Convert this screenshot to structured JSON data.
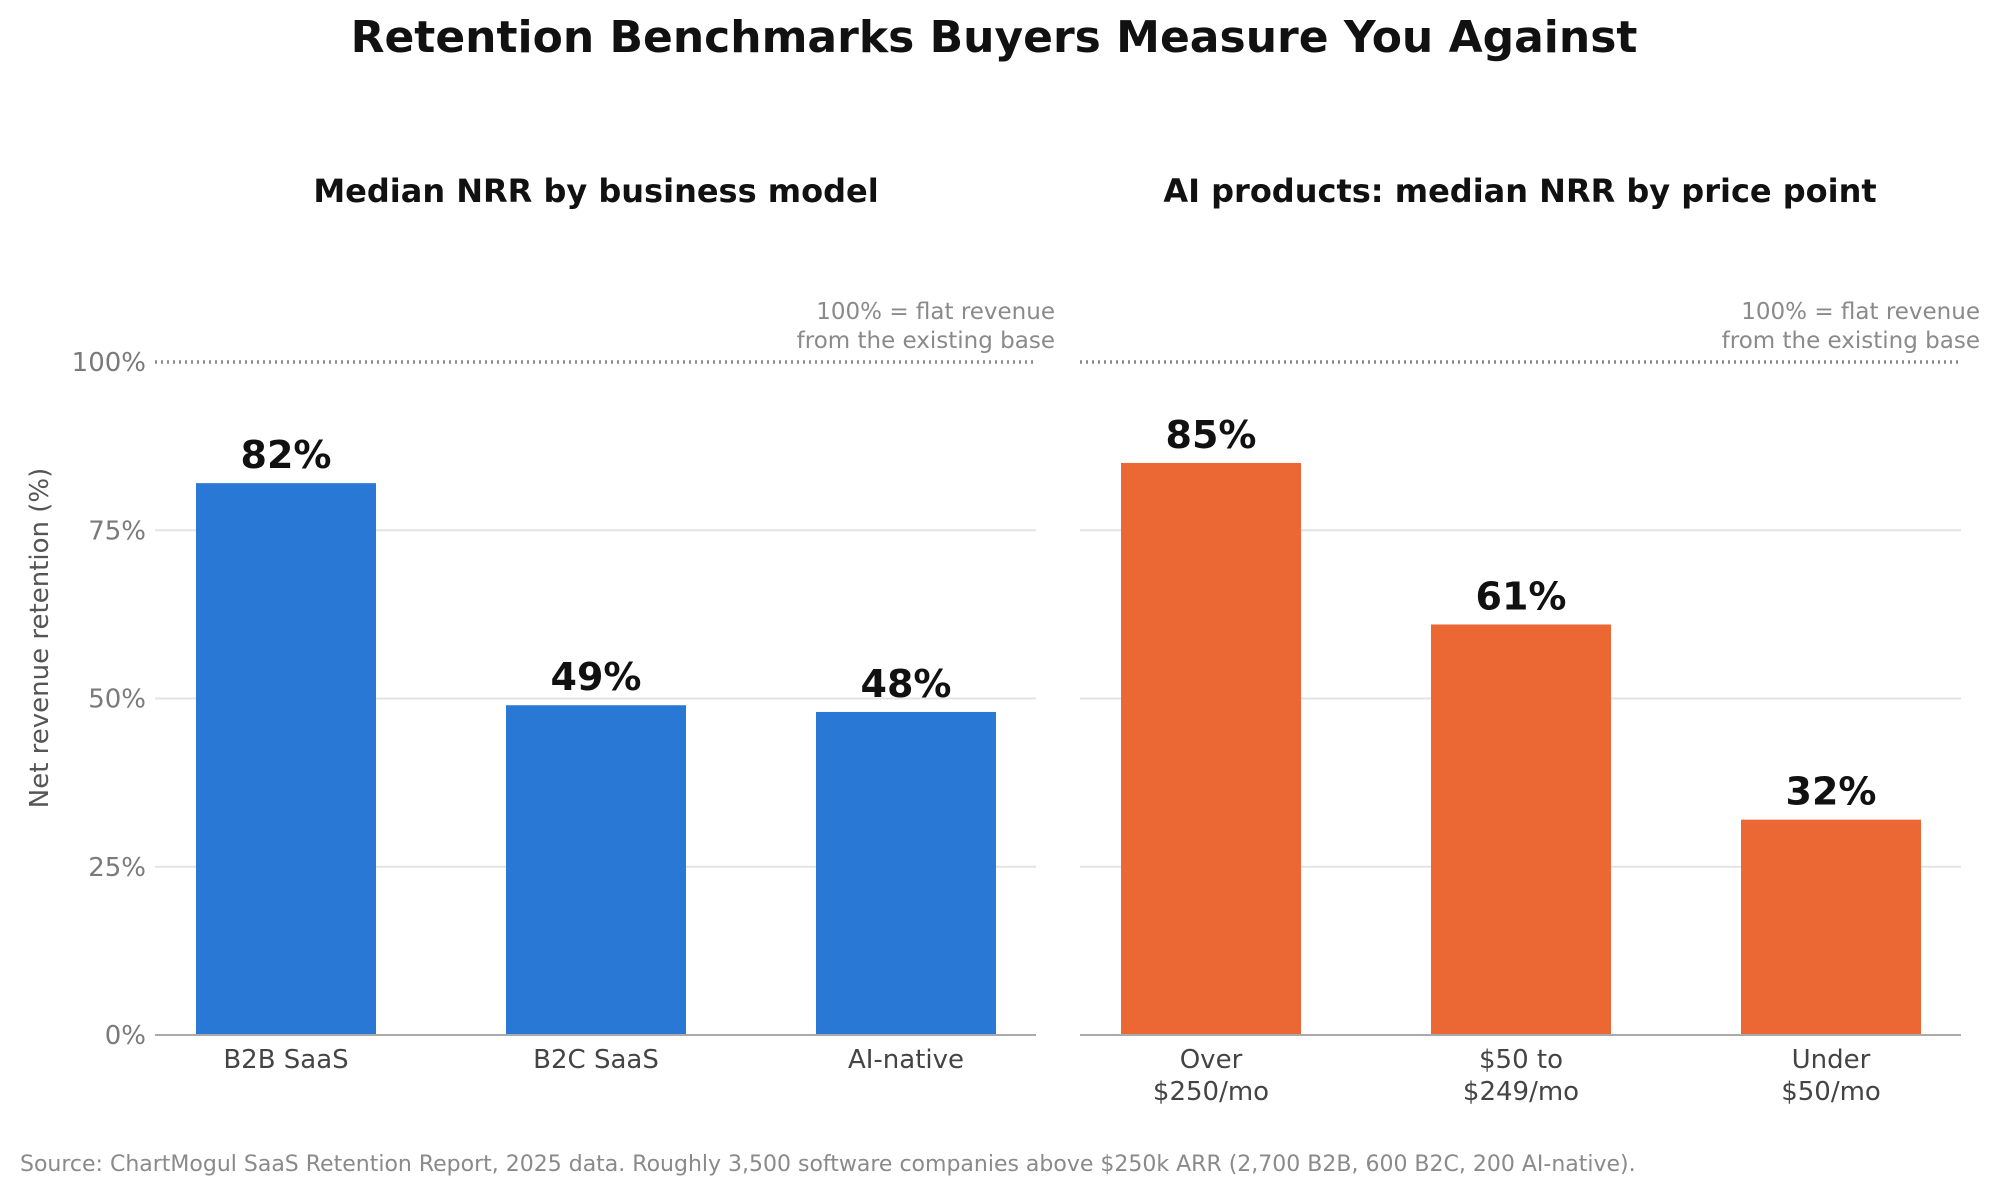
{
  "title": "Retention Benchmarks Buyers Measure You Against",
  "source": "Source: ChartMogul SaaS Retention Report, 2025 data. Roughly 3,500 software companies above $250k ARR (2,700 B2B, 600 B2C, 200 AI-native).",
  "ylabel": "Net revenue retention (%)",
  "y_ticks": [
    "0%",
    "25%",
    "50%",
    "75%",
    "100%"
  ],
  "reference_note": [
    "100% = flat revenue",
    "from the existing base"
  ],
  "colors": {
    "left_bars": "#2a78d6",
    "right_bars": "#eb6834",
    "reference_line": "#8a8a8a",
    "grid": "#e3e3e3",
    "tick_text": "#7a7a7a",
    "label_text": "#444444"
  },
  "chart_data": [
    {
      "type": "bar",
      "title": "Median NRR by business model",
      "categories": [
        [
          "B2B SaaS"
        ],
        [
          "B2C SaaS"
        ],
        [
          "AI-native"
        ]
      ],
      "values": [
        82,
        49,
        48
      ],
      "value_labels": [
        "82%",
        "49%",
        "48%"
      ],
      "ylabel": "Net revenue retention (%)",
      "ylim": [
        0,
        100
      ],
      "reference_line": 100,
      "grid": true
    },
    {
      "type": "bar",
      "title": "AI products: median NRR by price point",
      "categories": [
        [
          "Over",
          "$250/mo"
        ],
        [
          "$50 to",
          "$249/mo"
        ],
        [
          "Under",
          "$50/mo"
        ]
      ],
      "values": [
        85,
        61,
        32
      ],
      "value_labels": [
        "85%",
        "61%",
        "32%"
      ],
      "ylim": [
        0,
        100
      ],
      "reference_line": 100,
      "grid": true
    }
  ]
}
